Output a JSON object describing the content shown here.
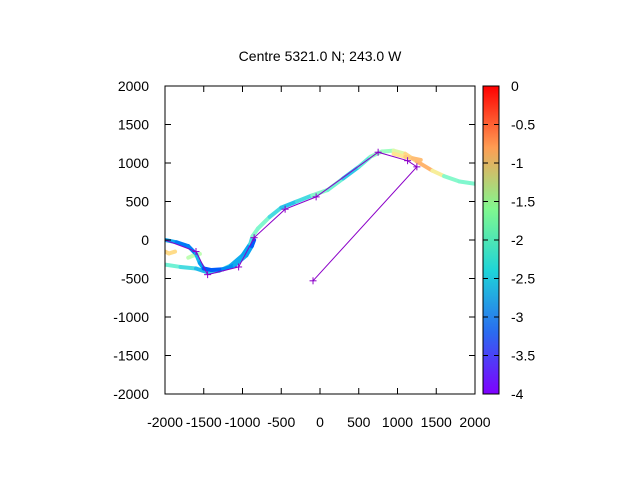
{
  "chart_data": {
    "type": "line",
    "title": "Centre 5321.0 N; 243.0  W",
    "xlabel": "",
    "ylabel": "",
    "xlim": [
      -2000,
      2000
    ],
    "ylim": [
      -2000,
      2000
    ],
    "x_ticks": [
      -2000,
      -1500,
      -1000,
      -500,
      0,
      500,
      1000,
      1500,
      2000
    ],
    "y_ticks": [
      -2000,
      -1500,
      -1000,
      -500,
      0,
      500,
      1000,
      1500,
      2000
    ],
    "colorbar": {
      "range": [
        -4,
        0
      ],
      "ticks": [
        "0",
        "-0.5",
        "-1",
        "-1.5",
        "-2",
        "-2.5",
        "-3",
        "-3.5",
        "-4"
      ]
    },
    "grid": false,
    "series": [
      {
        "points": [
          [
            -2000,
            -320,
            -2.4
          ],
          [
            -1800,
            -350,
            -2.6
          ],
          [
            -1600,
            -370,
            -2.9
          ],
          [
            -1450,
            -420,
            -3.1
          ],
          [
            -1300,
            -400,
            -2.6
          ],
          [
            -1150,
            -330,
            -2.9
          ],
          [
            -1000,
            -200,
            -3.3
          ],
          [
            -900,
            -50,
            -3.0
          ],
          [
            -870,
            50,
            -2.5
          ],
          [
            -800,
            150,
            -2.2
          ],
          [
            -650,
            300,
            -2.6
          ],
          [
            -500,
            420,
            -2.9
          ],
          [
            -300,
            500,
            -3.0
          ],
          [
            -100,
            580,
            -2.5
          ],
          [
            100,
            650,
            -2.2
          ],
          [
            300,
            800,
            -2.8
          ],
          [
            500,
            950,
            -3.0
          ],
          [
            650,
            1080,
            -2.2
          ],
          [
            800,
            1150,
            -2.4
          ],
          [
            950,
            1160,
            -2.0
          ],
          [
            1100,
            1120,
            -1.6
          ],
          [
            1250,
            1020,
            -1.2
          ],
          [
            1450,
            900,
            -1.1
          ],
          [
            1600,
            830,
            -2.2
          ],
          [
            1800,
            760,
            -2.5
          ],
          [
            2000,
            730,
            -2.3
          ]
        ]
      },
      {
        "points": [
          [
            -1700,
            -230,
            -2.0
          ],
          [
            -1630,
            -200,
            -2.0
          ],
          [
            -1550,
            -180,
            -2.0
          ]
        ]
      },
      {
        "points": [
          [
            -2000,
            0,
            -3.0
          ],
          [
            -1850,
            -30,
            -3.3
          ],
          [
            -1700,
            -80,
            -3.5
          ],
          [
            -1600,
            -180,
            -3.2
          ],
          [
            -1550,
            -300,
            -2.9
          ],
          [
            -1500,
            -370,
            -3.5
          ],
          [
            -1400,
            -390,
            -3.7
          ],
          [
            -1250,
            -380,
            -3.4
          ],
          [
            -1100,
            -330,
            -3.2
          ],
          [
            -950,
            -200,
            -3.0
          ],
          [
            -880,
            -80,
            -3.3
          ],
          [
            -850,
            0,
            -3.8
          ]
        ]
      },
      {
        "points": [
          [
            -2000,
            -150,
            -1.4
          ],
          [
            -1950,
            -175,
            -1.4
          ],
          [
            -1870,
            -150,
            -1.5
          ]
        ]
      },
      {
        "points": [
          [
            950,
            1120,
            -1.7
          ],
          [
            1100,
            1080,
            -1.4
          ],
          [
            1200,
            1060,
            -1.2
          ],
          [
            1300,
            1040,
            -1.2
          ]
        ]
      }
    ],
    "track": {
      "points": [
        [
          -2000,
          0
        ],
        [
          -1600,
          -150
        ],
        [
          -1450,
          -450
        ],
        [
          -1050,
          -350
        ],
        [
          -850,
          30
        ],
        [
          -450,
          400
        ],
        [
          -50,
          560
        ],
        [
          750,
          1140
        ],
        [
          1130,
          1030
        ],
        [
          1250,
          950
        ],
        [
          -90,
          -530
        ]
      ],
      "color": "#8b00c8"
    }
  }
}
